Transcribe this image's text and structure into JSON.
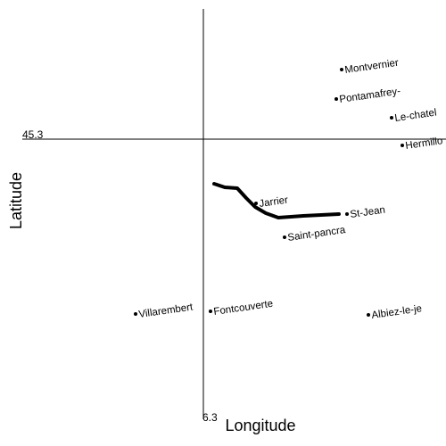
{
  "chart_data": {
    "type": "scatter",
    "x_label": "Longitude",
    "y_label": "Latitude",
    "xlim": [
      6.186,
      6.436
    ],
    "ylim": [
      45.143,
      45.373
    ],
    "xticks": [
      6.3
    ],
    "yticks": [
      45.3
    ],
    "labels": [
      "Montvernier",
      "Pontamafrey-",
      "Le-chatel",
      "Hermillo",
      "Jarrier",
      "St-Jean",
      "Saint-pancra",
      "Villarembert",
      "Fontcouverte",
      "Albiez-le-je"
    ],
    "x": [
      6.3775,
      6.3745,
      6.4055,
      6.4115,
      6.3295,
      6.3805,
      6.3455,
      6.262,
      6.304,
      6.3925
    ],
    "y": [
      45.339,
      45.3225,
      45.312,
      45.2965,
      45.264,
      45.258,
      45.245,
      45.202,
      45.2035,
      45.2015
    ],
    "color": "#000000",
    "line": {
      "x": [
        6.306,
        6.312,
        6.319,
        6.324,
        6.329,
        6.335,
        6.342,
        6.356,
        6.376
      ],
      "y": [
        45.275,
        45.273,
        45.2725,
        45.267,
        45.262,
        45.2585,
        45.256,
        45.257,
        45.258
      ]
    }
  }
}
